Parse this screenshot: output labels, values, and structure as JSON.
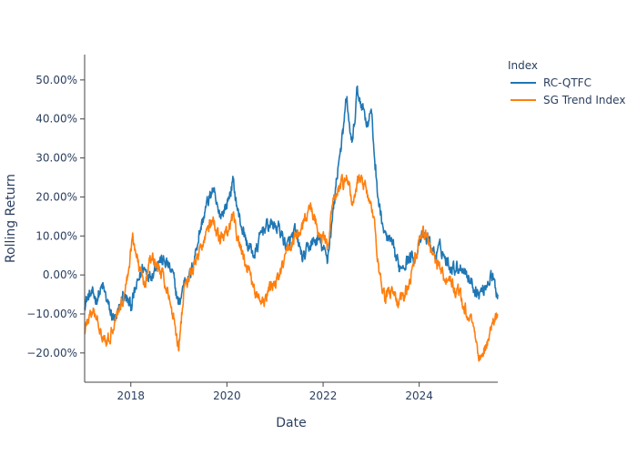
{
  "chart_data": {
    "type": "line",
    "title": "",
    "xlabel": "Date",
    "ylabel": "Rolling Return",
    "xlim": [
      "2017-01-15",
      "2025-08-20"
    ],
    "ylim": [
      -0.275,
      0.565
    ],
    "x_ticks": [
      {
        "value": "2018-01-01",
        "label": "2018"
      },
      {
        "value": "2020-01-01",
        "label": "2020"
      },
      {
        "value": "2022-01-01",
        "label": "2022"
      },
      {
        "value": "2024-01-01",
        "label": "2024"
      }
    ],
    "y_ticks": [
      {
        "value": -0.2,
        "label": "−20.00%"
      },
      {
        "value": -0.1,
        "label": "−10.00%"
      },
      {
        "value": 0.0,
        "label": "0.00%"
      },
      {
        "value": 0.1,
        "label": "10.00%"
      },
      {
        "value": 0.2,
        "label": "20.00%"
      },
      {
        "value": 0.3,
        "label": "30.00%"
      },
      {
        "value": 0.4,
        "label": "40.00%"
      },
      {
        "value": 0.5,
        "label": "50.00%"
      }
    ],
    "grid": false,
    "legend": {
      "title": "Index",
      "position": "top-right"
    },
    "series": [
      {
        "name": "RC-QTFC",
        "color": "#1f77b4",
        "points": [
          [
            "2017-01-15",
            -0.07
          ],
          [
            "2017-03-01",
            -0.05
          ],
          [
            "2017-04-15",
            -0.06
          ],
          [
            "2017-06-01",
            -0.03
          ],
          [
            "2017-08-01",
            -0.1
          ],
          [
            "2017-09-15",
            -0.12
          ],
          [
            "2017-11-01",
            -0.05
          ],
          [
            "2018-01-01",
            -0.08
          ],
          [
            "2018-02-15",
            -0.03
          ],
          [
            "2018-04-01",
            0.02
          ],
          [
            "2018-06-01",
            0.0
          ],
          [
            "2018-08-01",
            0.04
          ],
          [
            "2018-10-01",
            0.03
          ],
          [
            "2018-11-15",
            0.0
          ],
          [
            "2019-01-01",
            -0.08
          ],
          [
            "2019-02-15",
            -0.01
          ],
          [
            "2019-04-01",
            0.0
          ],
          [
            "2019-06-01",
            0.1
          ],
          [
            "2019-08-01",
            0.18
          ],
          [
            "2019-09-15",
            0.22
          ],
          [
            "2019-11-01",
            0.15
          ],
          [
            "2020-01-01",
            0.18
          ],
          [
            "2020-02-15",
            0.24
          ],
          [
            "2020-04-01",
            0.15
          ],
          [
            "2020-06-01",
            0.08
          ],
          [
            "2020-08-01",
            0.05
          ],
          [
            "2020-10-01",
            0.12
          ],
          [
            "2020-12-01",
            0.13
          ],
          [
            "2021-02-01",
            0.12
          ],
          [
            "2021-04-01",
            0.07
          ],
          [
            "2021-06-01",
            0.11
          ],
          [
            "2021-08-01",
            0.04
          ],
          [
            "2021-10-01",
            0.08
          ],
          [
            "2021-12-01",
            0.09
          ],
          [
            "2022-02-01",
            0.04
          ],
          [
            "2022-03-15",
            0.15
          ],
          [
            "2022-05-01",
            0.3
          ],
          [
            "2022-06-01",
            0.36
          ],
          [
            "2022-07-01",
            0.46
          ],
          [
            "2022-07-15",
            0.38
          ],
          [
            "2022-08-15",
            0.34
          ],
          [
            "2022-09-15",
            0.47
          ],
          [
            "2022-11-01",
            0.43
          ],
          [
            "2022-12-01",
            0.39
          ],
          [
            "2023-01-01",
            0.42
          ],
          [
            "2023-02-01",
            0.28
          ],
          [
            "2023-03-01",
            0.18
          ],
          [
            "2023-04-15",
            0.1
          ],
          [
            "2023-06-01",
            0.08
          ],
          [
            "2023-08-01",
            0.02
          ],
          [
            "2023-10-01",
            0.04
          ],
          [
            "2023-12-01",
            0.05
          ],
          [
            "2024-02-01",
            0.1
          ],
          [
            "2024-03-15",
            0.09
          ],
          [
            "2024-05-01",
            0.05
          ],
          [
            "2024-06-15",
            0.07
          ],
          [
            "2024-08-01",
            0.03
          ],
          [
            "2024-10-01",
            0.02
          ],
          [
            "2024-12-01",
            0.02
          ],
          [
            "2025-02-01",
            -0.02
          ],
          [
            "2025-04-01",
            -0.05
          ],
          [
            "2025-05-15",
            -0.03
          ],
          [
            "2025-07-01",
            0.0
          ],
          [
            "2025-08-20",
            -0.05
          ]
        ]
      },
      {
        "name": "SG Trend Index",
        "color": "#ff7f0e",
        "points": [
          [
            "2017-01-15",
            -0.14
          ],
          [
            "2017-03-01",
            -0.1
          ],
          [
            "2017-04-15",
            -0.11
          ],
          [
            "2017-06-01",
            -0.15
          ],
          [
            "2017-07-15",
            -0.17
          ],
          [
            "2017-09-01",
            -0.11
          ],
          [
            "2017-10-15",
            -0.08
          ],
          [
            "2017-12-01",
            -0.02
          ],
          [
            "2018-01-15",
            0.1
          ],
          [
            "2018-03-01",
            0.02
          ],
          [
            "2018-04-15",
            -0.02
          ],
          [
            "2018-06-01",
            0.04
          ],
          [
            "2018-08-01",
            0.02
          ],
          [
            "2018-10-01",
            -0.03
          ],
          [
            "2018-11-15",
            -0.1
          ],
          [
            "2019-01-01",
            -0.18
          ],
          [
            "2019-02-15",
            -0.02
          ],
          [
            "2019-04-01",
            0.0
          ],
          [
            "2019-06-01",
            0.05
          ],
          [
            "2019-08-01",
            0.12
          ],
          [
            "2019-09-15",
            0.14
          ],
          [
            "2019-11-01",
            0.09
          ],
          [
            "2020-01-01",
            0.1
          ],
          [
            "2020-02-15",
            0.15
          ],
          [
            "2020-04-01",
            0.08
          ],
          [
            "2020-06-01",
            0.02
          ],
          [
            "2020-08-01",
            -0.04
          ],
          [
            "2020-10-01",
            -0.08
          ],
          [
            "2020-12-01",
            -0.03
          ],
          [
            "2021-02-01",
            -0.01
          ],
          [
            "2021-04-01",
            0.06
          ],
          [
            "2021-06-01",
            0.1
          ],
          [
            "2021-08-01",
            0.12
          ],
          [
            "2021-10-01",
            0.18
          ],
          [
            "2021-12-01",
            0.11
          ],
          [
            "2022-02-01",
            0.07
          ],
          [
            "2022-03-15",
            0.18
          ],
          [
            "2022-05-01",
            0.22
          ],
          [
            "2022-07-01",
            0.25
          ],
          [
            "2022-08-15",
            0.18
          ],
          [
            "2022-10-01",
            0.25
          ],
          [
            "2022-12-01",
            0.22
          ],
          [
            "2023-01-15",
            0.15
          ],
          [
            "2023-03-01",
            0.02
          ],
          [
            "2023-04-15",
            -0.06
          ],
          [
            "2023-06-01",
            -0.04
          ],
          [
            "2023-08-01",
            -0.08
          ],
          [
            "2023-10-01",
            -0.03
          ],
          [
            "2023-12-01",
            0.04
          ],
          [
            "2024-02-01",
            0.12
          ],
          [
            "2024-03-15",
            0.08
          ],
          [
            "2024-05-01",
            0.04
          ],
          [
            "2024-07-01",
            0.0
          ],
          [
            "2024-09-01",
            -0.02
          ],
          [
            "2024-11-01",
            -0.05
          ],
          [
            "2025-01-01",
            -0.1
          ],
          [
            "2025-02-15",
            -0.12
          ],
          [
            "2025-04-01",
            -0.22
          ],
          [
            "2025-05-15",
            -0.19
          ],
          [
            "2025-07-01",
            -0.13
          ],
          [
            "2025-08-20",
            -0.1
          ]
        ]
      }
    ]
  }
}
